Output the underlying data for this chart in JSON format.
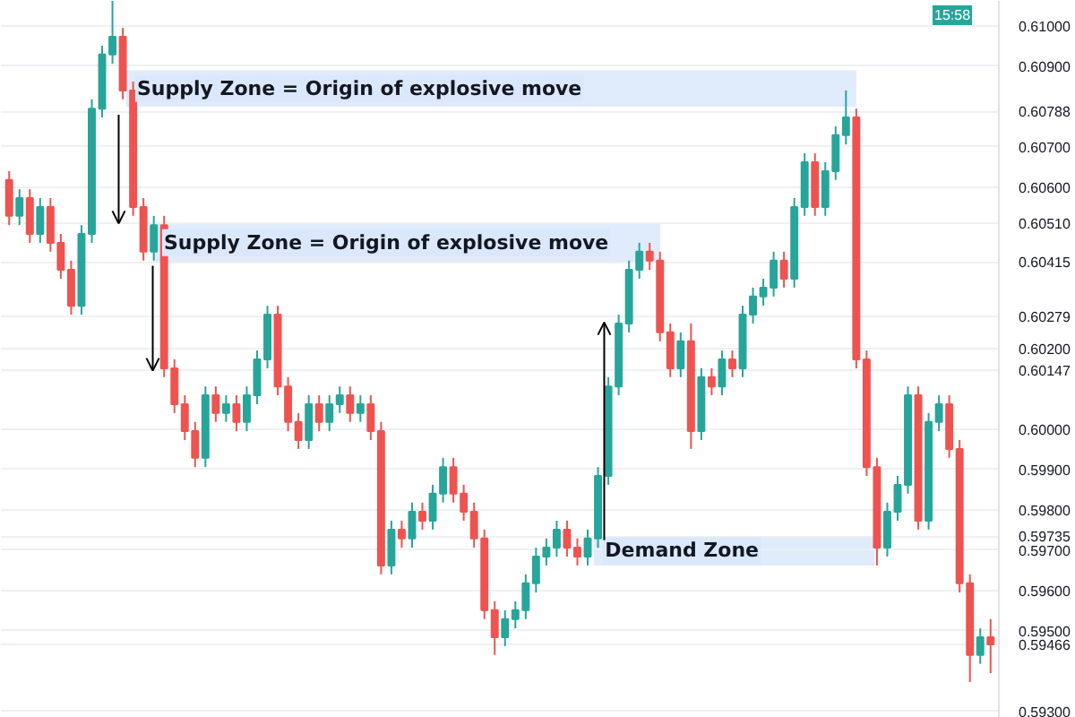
{
  "chart_data": {
    "type": "candlestick",
    "categories": [
      null,
      null,
      null,
      null,
      null,
      null,
      null,
      null,
      null,
      null,
      null,
      null,
      null,
      null,
      null,
      null,
      null,
      null,
      null,
      null,
      null,
      null,
      null,
      null,
      null,
      null,
      null,
      null,
      null,
      null,
      null,
      null,
      null,
      null,
      null,
      null,
      null,
      null,
      null,
      null,
      null,
      null,
      null,
      null,
      null,
      null,
      null,
      null,
      null,
      null,
      null,
      null,
      null,
      null,
      null,
      null,
      null,
      null,
      null,
      null,
      null,
      null,
      null,
      null,
      null,
      null,
      null,
      null,
      null,
      null,
      null,
      null,
      null,
      null,
      null,
      null,
      null,
      null,
      null,
      null,
      null,
      null,
      null,
      null,
      null,
      null,
      null,
      null,
      null,
      null,
      null,
      null,
      null,
      null,
      null,
      null
    ],
    "ohlc": [
      [
        0.60618,
        0.6064,
        0.60506,
        0.60529
      ],
      [
        0.60529,
        0.60595,
        0.60506,
        0.60573
      ],
      [
        0.60573,
        0.60595,
        0.60462,
        0.60484
      ],
      [
        0.60484,
        0.60573,
        0.60462,
        0.60551
      ],
      [
        0.60551,
        0.60573,
        0.6044,
        0.60462
      ],
      [
        0.60462,
        0.60484,
        0.60373,
        0.60395
      ],
      [
        0.60395,
        0.60418,
        0.60284,
        0.60306
      ],
      [
        0.60306,
        0.60506,
        0.60284,
        0.60484
      ],
      [
        0.60484,
        0.60818,
        0.60462,
        0.60795
      ],
      [
        0.60795,
        0.60951,
        0.60773,
        0.60929
      ],
      [
        0.60929,
        0.61062,
        0.60906,
        0.60973
      ],
      [
        0.60973,
        0.60995,
        0.60818,
        0.6084
      ],
      [
        0.6084,
        0.60862,
        0.60529,
        0.60551
      ],
      [
        0.60551,
        0.60573,
        0.60418,
        0.6044
      ],
      [
        0.6044,
        0.60529,
        0.60418,
        0.60506
      ],
      [
        0.60506,
        0.60529,
        0.60129,
        0.60151
      ],
      [
        0.60151,
        0.60173,
        0.6004,
        0.60062
      ],
      [
        0.60062,
        0.60084,
        0.59973,
        0.59995
      ],
      [
        0.59995,
        0.60018,
        0.59906,
        0.59929
      ],
      [
        0.59929,
        0.60106,
        0.59906,
        0.60084
      ],
      [
        0.60084,
        0.60106,
        0.60018,
        0.6004
      ],
      [
        0.6004,
        0.60084,
        0.60018,
        0.60062
      ],
      [
        0.60062,
        0.60084,
        0.59995,
        0.60018
      ],
      [
        0.60018,
        0.60106,
        0.59995,
        0.60084
      ],
      [
        0.60084,
        0.60195,
        0.60062,
        0.60173
      ],
      [
        0.60173,
        0.60306,
        0.60151,
        0.60284
      ],
      [
        0.60284,
        0.60306,
        0.60084,
        0.60106
      ],
      [
        0.60106,
        0.60129,
        0.59995,
        0.60018
      ],
      [
        0.60018,
        0.6004,
        0.59951,
        0.59973
      ],
      [
        0.59973,
        0.60084,
        0.59951,
        0.60062
      ],
      [
        0.60062,
        0.60084,
        0.59995,
        0.60018
      ],
      [
        0.60018,
        0.60084,
        0.59995,
        0.60062
      ],
      [
        0.60062,
        0.60106,
        0.6004,
        0.60084
      ],
      [
        0.60084,
        0.60106,
        0.60018,
        0.6004
      ],
      [
        0.6004,
        0.60084,
        0.60018,
        0.60062
      ],
      [
        0.60062,
        0.60084,
        0.59973,
        0.59995
      ],
      [
        0.59995,
        0.60018,
        0.5964,
        0.59662
      ],
      [
        0.59662,
        0.59773,
        0.5964,
        0.59751
      ],
      [
        0.59751,
        0.59773,
        0.59706,
        0.59729
      ],
      [
        0.59729,
        0.59818,
        0.59706,
        0.59795
      ],
      [
        0.59795,
        0.59818,
        0.59751,
        0.59773
      ],
      [
        0.59773,
        0.59862,
        0.59751,
        0.5984
      ],
      [
        0.5984,
        0.59929,
        0.59818,
        0.59906
      ],
      [
        0.59906,
        0.59929,
        0.59818,
        0.5984
      ],
      [
        0.5984,
        0.59862,
        0.59773,
        0.59795
      ],
      [
        0.59795,
        0.59818,
        0.59706,
        0.59729
      ],
      [
        0.59729,
        0.59751,
        0.59529,
        0.59551
      ],
      [
        0.59551,
        0.59573,
        0.5944,
        0.59484
      ],
      [
        0.59484,
        0.59551,
        0.59462,
        0.59529
      ],
      [
        0.59529,
        0.59573,
        0.59506,
        0.59551
      ],
      [
        0.59551,
        0.5964,
        0.59529,
        0.59618
      ],
      [
        0.59618,
        0.59706,
        0.59595,
        0.59684
      ],
      [
        0.59684,
        0.59729,
        0.59662,
        0.59706
      ],
      [
        0.59706,
        0.59773,
        0.59684,
        0.59751
      ],
      [
        0.59751,
        0.59773,
        0.59684,
        0.59706
      ],
      [
        0.59706,
        0.59729,
        0.59662,
        0.59684
      ],
      [
        0.59684,
        0.59751,
        0.59662,
        0.59729
      ],
      [
        0.59729,
        0.59906,
        0.59706,
        0.59884
      ],
      [
        0.59884,
        0.60129,
        0.59862,
        0.60106
      ],
      [
        0.60106,
        0.60284,
        0.60084,
        0.60262
      ],
      [
        0.60262,
        0.60418,
        0.6024,
        0.60395
      ],
      [
        0.60395,
        0.60462,
        0.60373,
        0.6044
      ],
      [
        0.6044,
        0.60462,
        0.60395,
        0.60418
      ],
      [
        0.60418,
        0.6044,
        0.60218,
        0.6024
      ],
      [
        0.6024,
        0.60262,
        0.60129,
        0.60151
      ],
      [
        0.60151,
        0.6024,
        0.60129,
        0.60218
      ],
      [
        0.60218,
        0.60262,
        0.59951,
        0.59995
      ],
      [
        0.59995,
        0.60151,
        0.59973,
        0.60129
      ],
      [
        0.60129,
        0.60151,
        0.60084,
        0.60106
      ],
      [
        0.60106,
        0.60195,
        0.60084,
        0.60173
      ],
      [
        0.60173,
        0.60195,
        0.60129,
        0.60151
      ],
      [
        0.60151,
        0.60306,
        0.60129,
        0.60284
      ],
      [
        0.60284,
        0.60351,
        0.60262,
        0.60329
      ],
      [
        0.60329,
        0.60373,
        0.60306,
        0.60351
      ],
      [
        0.60351,
        0.6044,
        0.60329,
        0.60418
      ],
      [
        0.60418,
        0.6044,
        0.60351,
        0.60373
      ],
      [
        0.60373,
        0.60573,
        0.60351,
        0.60551
      ],
      [
        0.60551,
        0.60684,
        0.60529,
        0.60662
      ],
      [
        0.60662,
        0.60684,
        0.60529,
        0.60551
      ],
      [
        0.60551,
        0.60662,
        0.60529,
        0.6064
      ],
      [
        0.6064,
        0.60751,
        0.60618,
        0.60729
      ],
      [
        0.60729,
        0.6084,
        0.60706,
        0.60773
      ],
      [
        0.60773,
        0.60795,
        0.60151,
        0.60173
      ],
      [
        0.60173,
        0.60195,
        0.59884,
        0.59906
      ],
      [
        0.59906,
        0.59929,
        0.59662,
        0.59706
      ],
      [
        0.59706,
        0.59818,
        0.59684,
        0.59795
      ],
      [
        0.59795,
        0.59884,
        0.59773,
        0.59862
      ],
      [
        0.59862,
        0.60106,
        0.5984,
        0.60084
      ],
      [
        0.60084,
        0.60106,
        0.59751,
        0.59773
      ],
      [
        0.59773,
        0.6004,
        0.59751,
        0.60018
      ],
      [
        0.60018,
        0.60084,
        0.59995,
        0.60062
      ],
      [
        0.60062,
        0.60084,
        0.59929,
        0.59951
      ],
      [
        0.59951,
        0.59973,
        0.59595,
        0.59618
      ],
      [
        0.59618,
        0.5964,
        0.59373,
        0.5944
      ],
      [
        0.5944,
        0.59506,
        0.59418,
        0.59484
      ],
      [
        0.59484,
        0.59529,
        0.59395,
        0.59466
      ]
    ],
    "colors": [
      "#ef5350",
      "#26a69a",
      "#ef5350",
      "#26a69a",
      "#ef5350",
      "#ef5350",
      "#ef5350",
      "#26a69a",
      "#26a69a",
      "#26a69a",
      "#26a69a",
      "#ef5350",
      "#ef5350",
      "#ef5350",
      "#26a69a",
      "#ef5350",
      "#ef5350",
      "#ef5350",
      "#ef5350",
      "#26a69a",
      "#ef5350",
      "#26a69a",
      "#ef5350",
      "#26a69a",
      "#26a69a",
      "#26a69a",
      "#ef5350",
      "#ef5350",
      "#ef5350",
      "#26a69a",
      "#ef5350",
      "#26a69a",
      "#26a69a",
      "#ef5350",
      "#26a69a",
      "#ef5350",
      "#ef5350",
      "#26a69a",
      "#ef5350",
      "#26a69a",
      "#ef5350",
      "#26a69a",
      "#26a69a",
      "#ef5350",
      "#ef5350",
      "#ef5350",
      "#ef5350",
      "#ef5350",
      "#26a69a",
      "#26a69a",
      "#26a69a",
      "#26a69a",
      "#26a69a",
      "#26a69a",
      "#ef5350",
      "#ef5350",
      "#26a69a",
      "#26a69a",
      "#26a69a",
      "#26a69a",
      "#26a69a",
      "#26a69a",
      "#ef5350",
      "#ef5350",
      "#ef5350",
      "#26a69a",
      "#ef5350",
      "#26a69a",
      "#ef5350",
      "#26a69a",
      "#ef5350",
      "#26a69a",
      "#26a69a",
      "#26a69a",
      "#26a69a",
      "#ef5350",
      "#26a69a",
      "#26a69a",
      "#ef5350",
      "#26a69a",
      "#26a69a",
      "#26a69a",
      "#ef5350",
      "#ef5350",
      "#ef5350",
      "#26a69a",
      "#26a69a",
      "#26a69a",
      "#ef5350",
      "#26a69a",
      "#26a69a",
      "#ef5350",
      "#ef5350",
      "#ef5350",
      "#26a69a",
      "#ef5350"
    ],
    "ylim": [
      0.59284,
      0.61062
    ],
    "yticks": [
      {
        "value": 0.61,
        "label": "0.61000"
      },
      {
        "value": 0.609,
        "label": "0.60900"
      },
      {
        "value": 0.60788,
        "label": "0.60788"
      },
      {
        "value": 0.607,
        "label": "0.60700"
      },
      {
        "value": 0.606,
        "label": "0.60600"
      },
      {
        "value": 0.6051,
        "label": "0.60510"
      },
      {
        "value": 0.60415,
        "label": "0.60415"
      },
      {
        "value": 0.60279,
        "label": "0.60279"
      },
      {
        "value": 0.602,
        "label": "0.60200"
      },
      {
        "value": 0.60147,
        "label": "0.60147"
      },
      {
        "value": 0.6,
        "label": "0.60000"
      },
      {
        "value": 0.599,
        "label": "0.59900"
      },
      {
        "value": 0.598,
        "label": "0.59800"
      },
      {
        "value": 0.59735,
        "label": "0.59735"
      },
      {
        "value": 0.597,
        "label": "0.59700"
      },
      {
        "value": 0.596,
        "label": "0.59600"
      },
      {
        "value": 0.595,
        "label": "0.59500"
      },
      {
        "value": 0.59466,
        "label": "0.59466"
      },
      {
        "value": 0.593,
        "label": "0.59300"
      }
    ],
    "bands": [
      {
        "axis": "y",
        "from": 0.608,
        "to": 0.6089,
        "label": "Supply Zone = Origin of explosive move",
        "color": "#dbe8fb"
      },
      {
        "axis": "y",
        "from": 0.60415,
        "to": 0.6051,
        "label": "Supply Zone = Origin of explosive move",
        "color": "#dbe8fb"
      },
      {
        "axis": "y",
        "from": 0.59662,
        "to": 0.59735,
        "label": "Demand Zone",
        "color": "#dbe8fb"
      }
    ],
    "annotations": [
      "15:58"
    ],
    "grid": "y",
    "tick_labels": "y"
  }
}
